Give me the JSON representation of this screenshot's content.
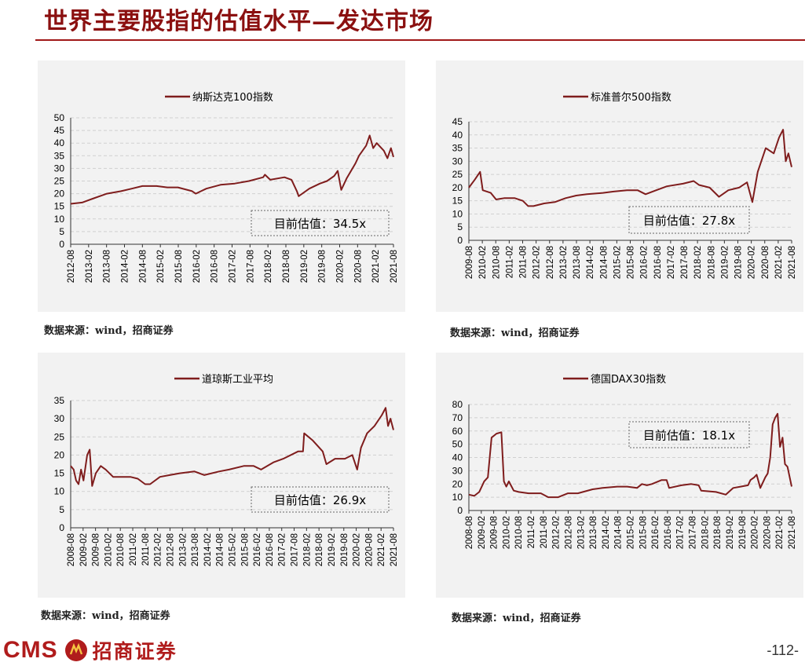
{
  "page": {
    "title": "世界主要股指的估值水平—发达市场",
    "page_number": "-112-",
    "logo_text": "CMS",
    "logo_cn": "招商证券",
    "colors": {
      "line": "#7f1d1d",
      "title": "#8b1010",
      "panel_bg": "#f2f2f2",
      "grid": "#d0d0d0"
    }
  },
  "sources": [
    "数据来源：wind，招商证券",
    "数据来源：wind，招商证券",
    "数据来源：wind，招商证券",
    "数据来源：wind，招商证券"
  ],
  "chart_data": [
    {
      "type": "line",
      "legend": "纳斯达克100指数",
      "legend_position": "top-center",
      "annotation": "目前估值：34.5x",
      "ylim": [
        0,
        50
      ],
      "yticks": [
        0,
        5,
        10,
        15,
        20,
        25,
        30,
        35,
        40,
        45,
        50
      ],
      "xlim": [
        2012.58,
        2021.67
      ],
      "xticks": [
        "2012-08",
        "2013-02",
        "2013-08",
        "2014-02",
        "2014-08",
        "2015-02",
        "2015-08",
        "2016-02",
        "2016-08",
        "2017-02",
        "2017-08",
        "2018-02",
        "2018-08",
        "2019-02",
        "2019-08",
        "2020-02",
        "2020-08",
        "2021-02",
        "2021-08"
      ],
      "grid": true,
      "x": [
        2012.58,
        2012.9,
        2013.2,
        2013.6,
        2014.0,
        2014.3,
        2014.6,
        2015.0,
        2015.3,
        2015.6,
        2016.0,
        2016.1,
        2016.4,
        2016.8,
        2017.2,
        2017.6,
        2018.0,
        2018.05,
        2018.2,
        2018.6,
        2018.8,
        2018.95,
        2019.0,
        2019.3,
        2019.6,
        2019.8,
        2020.0,
        2020.1,
        2020.2,
        2020.35,
        2020.6,
        2020.7,
        2020.9,
        2021.0,
        2021.1,
        2021.2,
        2021.4,
        2021.5,
        2021.6,
        2021.67
      ],
      "y": [
        16,
        16.5,
        18,
        20,
        21,
        22,
        23,
        23,
        22.5,
        22.5,
        21,
        20,
        22,
        23.5,
        24,
        25,
        26.5,
        27.5,
        25.5,
        26.5,
        25.5,
        21,
        19,
        22,
        24,
        25,
        27,
        29,
        21.5,
        26,
        32,
        35,
        39,
        43,
        38,
        40,
        37,
        34,
        38,
        34.5
      ]
    },
    {
      "type": "line",
      "legend": "标准普尔500指数",
      "legend_position": "top-center",
      "annotation": "目前估值：27.8x",
      "ylim": [
        0,
        45
      ],
      "yticks": [
        0,
        5,
        10,
        15,
        20,
        25,
        30,
        35,
        40,
        45
      ],
      "xlim": [
        2009.58,
        2021.67
      ],
      "xticks": [
        "2009-08",
        "2010-02",
        "2010-08",
        "2011-02",
        "2011-08",
        "2012-02",
        "2012-08",
        "2013-02",
        "2013-08",
        "2014-02",
        "2014-08",
        "2015-02",
        "2015-08",
        "2016-02",
        "2016-08",
        "2017-02",
        "2017-08",
        "2018-02",
        "2018-08",
        "2019-02",
        "2019-08",
        "2020-02",
        "2020-08",
        "2021-02",
        "2021-08"
      ],
      "grid": true,
      "x": [
        2009.58,
        2009.8,
        2010.0,
        2010.1,
        2010.4,
        2010.6,
        2010.9,
        2011.3,
        2011.6,
        2011.8,
        2012.0,
        2012.4,
        2012.8,
        2013.2,
        2013.6,
        2014.0,
        2014.6,
        2015.0,
        2015.5,
        2015.9,
        2016.2,
        2016.6,
        2017.0,
        2017.6,
        2018.0,
        2018.2,
        2018.6,
        2018.95,
        2019.3,
        2019.7,
        2020.0,
        2020.2,
        2020.4,
        2020.7,
        2021.0,
        2021.2,
        2021.35,
        2021.45,
        2021.55,
        2021.67
      ],
      "y": [
        20,
        23,
        26,
        19,
        18,
        15.5,
        16,
        16,
        15,
        13,
        13,
        14,
        14.5,
        16,
        17,
        17.5,
        18,
        18.5,
        19,
        19,
        17.5,
        19,
        20.5,
        21.5,
        22.5,
        21,
        20,
        16.5,
        19,
        20,
        22,
        14.5,
        26,
        35,
        33,
        39,
        42,
        30,
        33,
        27.8
      ]
    },
    {
      "type": "line",
      "legend": "道琼斯工业平均",
      "legend_position": "top-center",
      "annotation": "目前估值：26.9x",
      "ylim": [
        0,
        35
      ],
      "yticks": [
        0,
        5,
        10,
        15,
        20,
        25,
        30,
        35
      ],
      "xlim": [
        2008.58,
        2021.67
      ],
      "xticks": [
        "2008-08",
        "2009-02",
        "2009-08",
        "2010-02",
        "2010-08",
        "2011-02",
        "2011-08",
        "2012-02",
        "2012-08",
        "2013-02",
        "2013-08",
        "2014-02",
        "2014-08",
        "2015-02",
        "2015-08",
        "2016-02",
        "2016-08",
        "2017-02",
        "2017-08",
        "2018-02",
        "2018-08",
        "2019-02",
        "2019-08",
        "2020-02",
        "2020-08",
        "2021-02",
        "2021-08"
      ],
      "grid": true,
      "x": [
        2008.58,
        2008.7,
        2008.8,
        2008.9,
        2009.0,
        2009.1,
        2009.25,
        2009.35,
        2009.45,
        2009.6,
        2009.8,
        2010.0,
        2010.3,
        2010.6,
        2011.0,
        2011.3,
        2011.6,
        2011.8,
        2012.2,
        2012.6,
        2013.0,
        2013.6,
        2014.0,
        2014.6,
        2015.0,
        2015.6,
        2016.0,
        2016.3,
        2016.8,
        2017.2,
        2017.8,
        2018.0,
        2018.05,
        2018.4,
        2018.8,
        2018.95,
        2019.3,
        2019.7,
        2020.0,
        2020.2,
        2020.35,
        2020.6,
        2020.9,
        2021.2,
        2021.35,
        2021.45,
        2021.55,
        2021.67
      ],
      "y": [
        17,
        16,
        13,
        12,
        16,
        13,
        20,
        21.5,
        11.5,
        15,
        17,
        16,
        14,
        14,
        14,
        13.5,
        12,
        12,
        14,
        14.5,
        15,
        15.5,
        14.5,
        15.5,
        16,
        17,
        17,
        16,
        18,
        19,
        21,
        21,
        26,
        24,
        21,
        17.5,
        19,
        19,
        20,
        16,
        22,
        26,
        28,
        31,
        33,
        28,
        30,
        26.9
      ]
    },
    {
      "type": "line",
      "legend": "德国DAX30指数",
      "legend_position": "top-center",
      "annotation": "目前估值：18.1x",
      "ylim": [
        0,
        80
      ],
      "yticks": [
        0,
        10,
        20,
        30,
        40,
        50,
        60,
        70,
        80
      ],
      "xlim": [
        2008.58,
        2021.67
      ],
      "xticks": [
        "2008-08",
        "2009-02",
        "2009-08",
        "2010-02",
        "2010-08",
        "2011-02",
        "2011-08",
        "2012-02",
        "2012-08",
        "2013-02",
        "2013-08",
        "2014-02",
        "2014-08",
        "2015-02",
        "2015-08",
        "2016-02",
        "2016-08",
        "2017-02",
        "2017-08",
        "2018-02",
        "2018-08",
        "2019-02",
        "2019-08",
        "2020-02",
        "2020-08",
        "2021-02",
        "2021-08"
      ],
      "grid": true,
      "x": [
        2008.58,
        2008.8,
        2009.0,
        2009.2,
        2009.35,
        2009.5,
        2009.7,
        2009.9,
        2010.0,
        2010.1,
        2010.2,
        2010.4,
        2010.6,
        2011.0,
        2011.5,
        2011.8,
        2012.2,
        2012.6,
        2013.0,
        2013.6,
        2014.0,
        2014.6,
        2015.0,
        2015.4,
        2015.6,
        2015.8,
        2016.0,
        2016.4,
        2016.6,
        2016.7,
        2017.2,
        2017.6,
        2017.9,
        2018.0,
        2018.6,
        2019.0,
        2019.3,
        2019.6,
        2019.9,
        2020.0,
        2020.15,
        2020.25,
        2020.4,
        2020.6,
        2020.7,
        2020.8,
        2020.9,
        2021.0,
        2021.1,
        2021.2,
        2021.3,
        2021.4,
        2021.5,
        2021.67
      ],
      "y": [
        12,
        11,
        14,
        22,
        25,
        55,
        58,
        59,
        22,
        18,
        22,
        15,
        14,
        13,
        13,
        10,
        10,
        13,
        13,
        16,
        17,
        18,
        18,
        17,
        20,
        19,
        20,
        23,
        23,
        17,
        19,
        20,
        19,
        15,
        14,
        12,
        17,
        18,
        19,
        23,
        25,
        27,
        17,
        25,
        28,
        40,
        65,
        70,
        73,
        48,
        55,
        35,
        33,
        18.1
      ]
    }
  ]
}
